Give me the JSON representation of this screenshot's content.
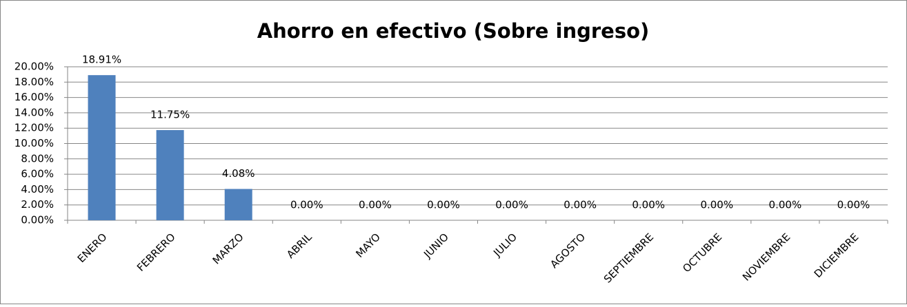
{
  "chart_data": {
    "type": "bar",
    "title": "Ahorro en efectivo (Sobre ingreso)",
    "categories": [
      "ENERO",
      "FEBRERO",
      "MARZO",
      "ABRIL",
      "MAYO",
      "JUNIO",
      "JULIO",
      "AGOSTO",
      "SEPTIEMBRE",
      "OCTUBRE",
      "NOVIEMBRE",
      "DICIEMBRE"
    ],
    "values": [
      18.91,
      11.75,
      4.08,
      0,
      0,
      0,
      0,
      0,
      0,
      0,
      0,
      0
    ],
    "value_labels": [
      "18.91%",
      "11.75%",
      "4.08%",
      "0.00%",
      "0.00%",
      "0.00%",
      "0.00%",
      "0.00%",
      "0.00%",
      "0.00%",
      "0.00%",
      "0.00%"
    ],
    "color": "#4f81bd",
    "ylim": [
      0,
      20
    ],
    "yticks": [
      {
        "value": 0,
        "label": "0.00%"
      },
      {
        "value": 2,
        "label": "2.00%"
      },
      {
        "value": 4,
        "label": "4.00%"
      },
      {
        "value": 6,
        "label": "6.00%"
      },
      {
        "value": 8,
        "label": "8.00%"
      },
      {
        "value": 10,
        "label": "10.00%"
      },
      {
        "value": 12,
        "label": "12.00%"
      },
      {
        "value": 14,
        "label": "14.00%"
      },
      {
        "value": 16,
        "label": "16.00%"
      },
      {
        "value": 18,
        "label": "18.00%"
      },
      {
        "value": 20,
        "label": "20.00%"
      }
    ],
    "grid": true
  }
}
